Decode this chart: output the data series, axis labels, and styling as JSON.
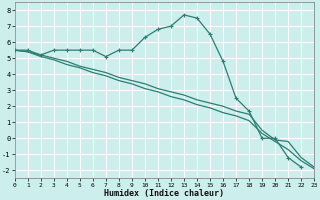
{
  "title": "",
  "xlabel": "Humidex (Indice chaleur)",
  "background_color": "#cceeed",
  "grid_color": "#ffffff",
  "line_color": "#2e7d72",
  "xlim": [
    0,
    23
  ],
  "ylim": [
    -2.5,
    8.5
  ],
  "xticks": [
    0,
    1,
    2,
    3,
    4,
    5,
    6,
    7,
    8,
    9,
    10,
    11,
    12,
    13,
    14,
    15,
    16,
    17,
    18,
    19,
    20,
    21,
    22,
    23
  ],
  "yticks": [
    -2,
    -1,
    0,
    1,
    2,
    3,
    4,
    5,
    6,
    7,
    8
  ],
  "line1_x": [
    0,
    1,
    2,
    3,
    4,
    5,
    6,
    7,
    8,
    9,
    10,
    11,
    12,
    13,
    14,
    15,
    16,
    17,
    18,
    19,
    20,
    21,
    22
  ],
  "line1_y": [
    5.5,
    5.5,
    5.2,
    5.5,
    5.5,
    5.5,
    5.5,
    5.1,
    5.5,
    5.5,
    6.3,
    6.8,
    7.0,
    7.7,
    7.5,
    6.5,
    4.8,
    2.5,
    1.7,
    0.0,
    0.0,
    -1.2,
    -1.8
  ],
  "line2_x": [
    0,
    1,
    2,
    3,
    4,
    5,
    6,
    7,
    8,
    9,
    10,
    11,
    12,
    13,
    14,
    15,
    16,
    17,
    18,
    19,
    20,
    21,
    22,
    23
  ],
  "line2_y": [
    5.5,
    5.4,
    5.2,
    5.0,
    4.8,
    4.5,
    4.3,
    4.1,
    3.8,
    3.6,
    3.4,
    3.1,
    2.9,
    2.7,
    2.4,
    2.2,
    2.0,
    1.7,
    1.5,
    0.5,
    -0.1,
    -0.2,
    -1.2,
    -1.8
  ],
  "line3_x": [
    0,
    1,
    2,
    3,
    4,
    5,
    6,
    7,
    8,
    9,
    10,
    11,
    12,
    13,
    14,
    15,
    16,
    17,
    18,
    19,
    20,
    21,
    22,
    23
  ],
  "line3_y": [
    5.5,
    5.4,
    5.1,
    4.9,
    4.6,
    4.4,
    4.1,
    3.9,
    3.6,
    3.4,
    3.1,
    2.9,
    2.6,
    2.4,
    2.1,
    1.9,
    1.6,
    1.4,
    1.1,
    0.3,
    -0.2,
    -0.7,
    -1.4,
    -1.9
  ]
}
